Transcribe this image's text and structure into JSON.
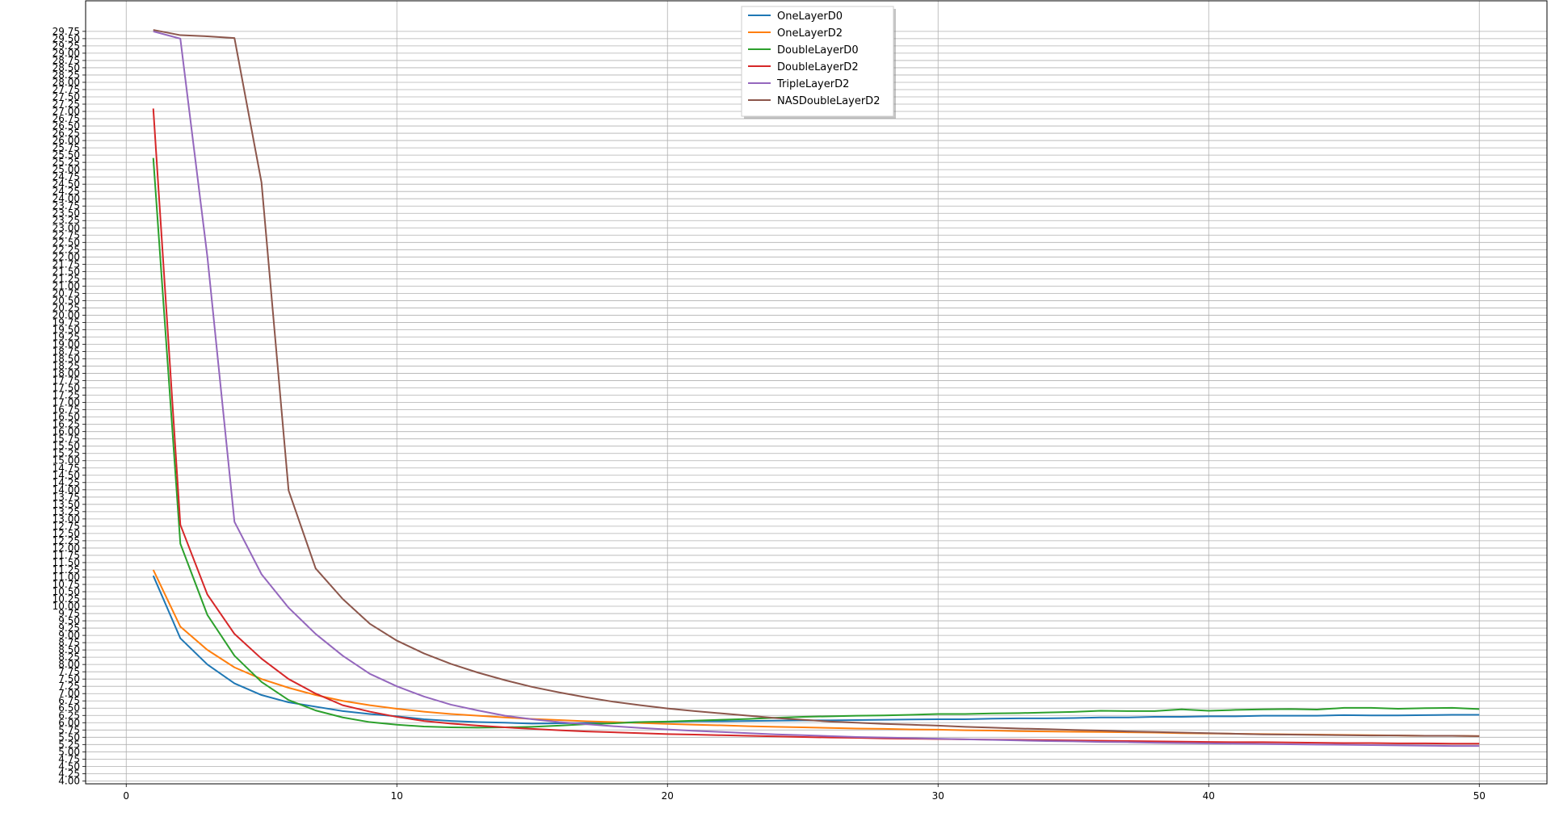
{
  "chart_data": {
    "type": "line",
    "title": "",
    "xlabel": "",
    "ylabel": "",
    "xlim": [
      -1.5,
      52.5
    ],
    "ylim": [
      3.9,
      30.8
    ],
    "grid": true,
    "legend_position": "top-center",
    "x_ticks": [
      0,
      10,
      20,
      30,
      40,
      50
    ],
    "x_tick_labels": [
      "0",
      "10",
      "20",
      "30",
      "40",
      "50"
    ],
    "y_tick_start": 4.0,
    "y_tick_end": 29.75,
    "y_tick_step": 0.25,
    "x": [
      1,
      2,
      3,
      4,
      5,
      6,
      7,
      8,
      9,
      10,
      11,
      12,
      13,
      14,
      15,
      16,
      17,
      18,
      19,
      20,
      21,
      22,
      23,
      24,
      25,
      26,
      27,
      28,
      29,
      30,
      31,
      32,
      33,
      34,
      35,
      36,
      37,
      38,
      39,
      40,
      41,
      42,
      43,
      44,
      45,
      46,
      47,
      48,
      49,
      50
    ],
    "series": [
      {
        "name": "OneLayerD0",
        "color": "#1f77b4",
        "values": [
          11.05,
          8.9,
          8.0,
          7.35,
          6.95,
          6.7,
          6.55,
          6.4,
          6.3,
          6.22,
          6.12,
          6.06,
          6.02,
          6.0,
          5.97,
          5.98,
          5.99,
          6.0,
          6.02,
          6.03,
          6.05,
          6.05,
          6.06,
          6.07,
          6.08,
          6.08,
          6.09,
          6.1,
          6.11,
          6.12,
          6.12,
          6.14,
          6.15,
          6.15,
          6.16,
          6.18,
          6.18,
          6.2,
          6.2,
          6.22,
          6.22,
          6.24,
          6.24,
          6.24,
          6.26,
          6.25,
          6.25,
          6.26,
          6.27,
          6.27
        ]
      },
      {
        "name": "OneLayerD2",
        "color": "#ff7f0e",
        "values": [
          11.25,
          9.3,
          8.5,
          7.9,
          7.5,
          7.2,
          6.95,
          6.75,
          6.6,
          6.48,
          6.38,
          6.3,
          6.24,
          6.18,
          6.13,
          6.09,
          6.05,
          6.02,
          5.99,
          5.96,
          5.93,
          5.91,
          5.88,
          5.86,
          5.84,
          5.82,
          5.8,
          5.79,
          5.77,
          5.76,
          5.74,
          5.73,
          5.71,
          5.7,
          5.69,
          5.68,
          5.67,
          5.66,
          5.64,
          5.63,
          5.62,
          5.61,
          5.6,
          5.59,
          5.58,
          5.57,
          5.56,
          5.55,
          5.55,
          5.54
        ]
      },
      {
        "name": "DoubleLayerD0",
        "color": "#2ca02c",
        "values": [
          25.4,
          12.15,
          9.7,
          8.3,
          7.4,
          6.78,
          6.42,
          6.18,
          6.02,
          5.93,
          5.87,
          5.84,
          5.83,
          5.84,
          5.86,
          5.9,
          5.95,
          5.98,
          6.02,
          6.04,
          6.07,
          6.1,
          6.13,
          6.17,
          6.2,
          6.22,
          6.24,
          6.25,
          6.27,
          6.3,
          6.3,
          6.32,
          6.33,
          6.35,
          6.37,
          6.41,
          6.4,
          6.4,
          6.46,
          6.41,
          6.44,
          6.46,
          6.47,
          6.45,
          6.51,
          6.51,
          6.48,
          6.5,
          6.51,
          6.47
        ]
      },
      {
        "name": "DoubleLayerD2",
        "color": "#d62728",
        "values": [
          27.1,
          12.8,
          10.4,
          9.05,
          8.2,
          7.5,
          7.0,
          6.6,
          6.38,
          6.2,
          6.06,
          5.97,
          5.9,
          5.84,
          5.79,
          5.74,
          5.7,
          5.67,
          5.64,
          5.61,
          5.59,
          5.57,
          5.55,
          5.53,
          5.51,
          5.49,
          5.48,
          5.46,
          5.45,
          5.44,
          5.43,
          5.42,
          5.41,
          5.4,
          5.39,
          5.38,
          5.37,
          5.36,
          5.35,
          5.34,
          5.33,
          5.33,
          5.32,
          5.31,
          5.3,
          5.3,
          5.29,
          5.29,
          5.28,
          5.28
        ]
      },
      {
        "name": "TripleLayerD2",
        "color": "#9467bd",
        "values": [
          29.75,
          29.5,
          22.0,
          12.9,
          11.1,
          9.95,
          9.05,
          8.3,
          7.68,
          7.25,
          6.9,
          6.62,
          6.42,
          6.24,
          6.12,
          6.02,
          5.95,
          5.88,
          5.82,
          5.77,
          5.72,
          5.68,
          5.64,
          5.6,
          5.57,
          5.54,
          5.51,
          5.49,
          5.47,
          5.45,
          5.43,
          5.41,
          5.39,
          5.37,
          5.36,
          5.34,
          5.33,
          5.31,
          5.3,
          5.29,
          5.28,
          5.27,
          5.26,
          5.25,
          5.24,
          5.23,
          5.22,
          5.21,
          5.2,
          5.2
        ]
      },
      {
        "name": "NASDoubleLayerD2",
        "color": "#8c564b",
        "values": [
          29.8,
          29.62,
          29.58,
          29.52,
          24.55,
          13.98,
          11.3,
          10.25,
          9.4,
          8.82,
          8.38,
          8.02,
          7.72,
          7.46,
          7.23,
          7.04,
          6.87,
          6.72,
          6.6,
          6.49,
          6.4,
          6.32,
          6.24,
          6.16,
          6.1,
          6.04,
          6.0,
          5.96,
          5.93,
          5.9,
          5.86,
          5.83,
          5.8,
          5.78,
          5.75,
          5.73,
          5.7,
          5.68,
          5.66,
          5.64,
          5.62,
          5.6,
          5.59,
          5.58,
          5.57,
          5.56,
          5.56,
          5.55,
          5.55,
          5.54
        ]
      }
    ]
  }
}
